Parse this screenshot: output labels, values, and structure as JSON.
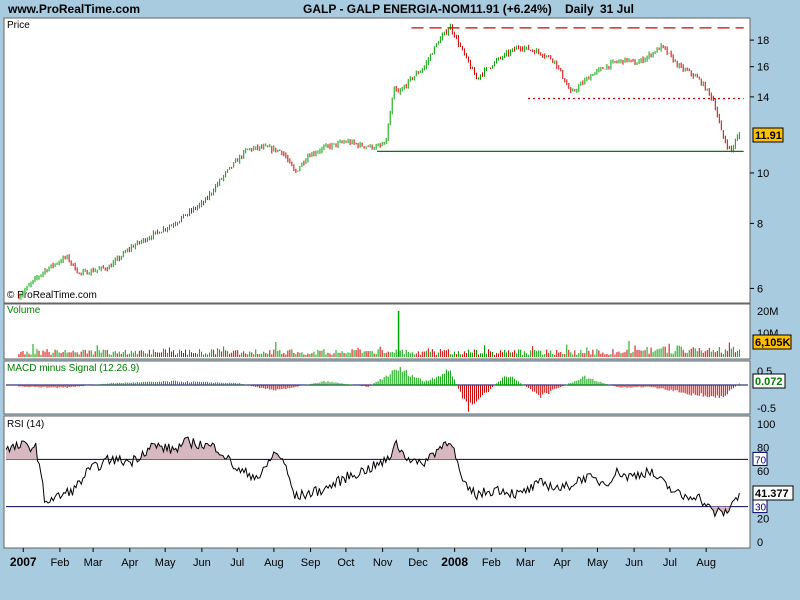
{
  "header": {
    "site": "www.ProRealTime.com",
    "symbol": "GALP - GALP ENERGIA-NOM",
    "quote": "11.91 (+6.24%)",
    "period": "Daily",
    "date": "31 Jul"
  },
  "colors": {
    "background": "#a9cbe0",
    "panel": "#ffffff",
    "up": "#00a000",
    "down": "#d00000",
    "rsi_fill": "#d8b8c0",
    "highlight": "#ffc000"
  },
  "chart_data": [
    {
      "type": "candlestick",
      "panel": "price",
      "title": "Price",
      "watermark": "© ProRealTime.com",
      "y_ticks": [
        6,
        8,
        10,
        14,
        16,
        18
      ],
      "y_scale": "log",
      "ylim": [
        5.7,
        19.5
      ],
      "last_value": "11.91",
      "path_x": [
        2006.99,
        2007.05,
        2007.1,
        2007.13,
        2007.2,
        2007.25,
        2007.3,
        2007.35,
        2007.42,
        2007.47,
        2007.52,
        2007.56,
        2007.6,
        2007.63,
        2007.66,
        2007.7,
        2007.75,
        2007.78,
        2007.82,
        2007.84,
        2007.86,
        2007.87,
        2007.9,
        2007.93,
        2007.96,
        2007.99,
        2008.02,
        2008.05,
        2008.1,
        2008.15,
        2008.2,
        2008.23,
        2008.27,
        2008.32,
        2008.37,
        2008.4,
        2008.42,
        2008.45,
        2008.48,
        2008.52,
        2008.55,
        2008.57,
        2008.6,
        2008.62,
        2008.64,
        2008.66
      ],
      "path_y": [
        5.8,
        6.5,
        6.9,
        6.4,
        6.6,
        7.2,
        7.6,
        8.0,
        8.8,
        10.0,
        11.1,
        11.2,
        11.0,
        10.0,
        10.8,
        11.2,
        11.5,
        11.3,
        11.2,
        11.4,
        14.5,
        14.2,
        15.2,
        16.0,
        17.8,
        19.1,
        17.0,
        15.2,
        16.5,
        17.5,
        17.0,
        16.5,
        14.2,
        15.5,
        16.3,
        16.5,
        16.2,
        16.8,
        17.5,
        16.0,
        15.5,
        15.0,
        13.8,
        11.8,
        11.0,
        11.91
      ],
      "resistance_dashed": {
        "value": 19.0,
        "x_from": 2007.9,
        "x_to": 2008.67
      },
      "resistance_dotted": {
        "value": 13.9,
        "x_from": 2008.17,
        "x_to": 2008.67
      },
      "support_line": {
        "value": 11.0,
        "x_from": 2007.82,
        "x_to": 2008.67
      }
    },
    {
      "type": "bar",
      "panel": "volume",
      "title": "Volume",
      "y_ticks": [
        "20M",
        "10M"
      ],
      "last_value": "6,105K",
      "spike": {
        "x": 2007.87,
        "value_m": 23
      }
    },
    {
      "type": "bar",
      "panel": "macd",
      "title": "MACD minus Signal (12.26.9)",
      "y_ticks": [
        "0.5",
        "-0.5"
      ],
      "last_value": "0.072"
    },
    {
      "type": "line",
      "panel": "rsi",
      "title": "RSI (14)",
      "y_ticks": [
        "100",
        "80",
        "60",
        "40",
        "20",
        "0"
      ],
      "levels": [
        "70",
        "30"
      ],
      "last_value": "41.377",
      "x": [
        2006.96,
        2007.0,
        2007.03,
        2007.05,
        2007.08,
        2007.12,
        2007.15,
        2007.2,
        2007.25,
        2007.3,
        2007.35,
        2007.38,
        2007.42,
        2007.45,
        2007.5,
        2007.55,
        2007.58,
        2007.6,
        2007.63,
        2007.65,
        2007.7,
        2007.75,
        2007.8,
        2007.85,
        2007.86,
        2007.88,
        2007.92,
        2007.95,
        2007.99,
        2008.02,
        2008.05,
        2008.1,
        2008.15,
        2008.2,
        2008.25,
        2008.3,
        2008.35,
        2008.38,
        2008.4,
        2008.45,
        2008.5,
        2008.53,
        2008.56,
        2008.6,
        2008.63,
        2008.66
      ],
      "y": [
        78,
        82,
        80,
        35,
        38,
        45,
        60,
        70,
        68,
        82,
        78,
        85,
        82,
        80,
        60,
        55,
        75,
        72,
        38,
        40,
        45,
        55,
        62,
        70,
        86,
        75,
        65,
        75,
        88,
        48,
        40,
        45,
        40,
        50,
        45,
        55,
        50,
        60,
        55,
        60,
        45,
        38,
        40,
        25,
        25,
        41.4
      ]
    }
  ],
  "x_axis": {
    "labels": [
      "2007",
      "Feb",
      "Mar",
      "Apr",
      "May",
      "Jun",
      "Jul",
      "Aug",
      "Sep",
      "Oct",
      "Nov",
      "Dec",
      "2008",
      "Feb",
      "Mar",
      "Apr",
      "May",
      "Jun",
      "Jul",
      "Aug"
    ],
    "positions": [
      2007.0,
      2007.085,
      2007.162,
      2007.247,
      2007.329,
      2007.414,
      2007.496,
      2007.581,
      2007.666,
      2007.748,
      2007.833,
      2007.915,
      2008.0,
      2008.085,
      2008.164,
      2008.249,
      2008.331,
      2008.416,
      2008.499,
      2008.583
    ],
    "bold": [
      "2007",
      "2008"
    ]
  }
}
